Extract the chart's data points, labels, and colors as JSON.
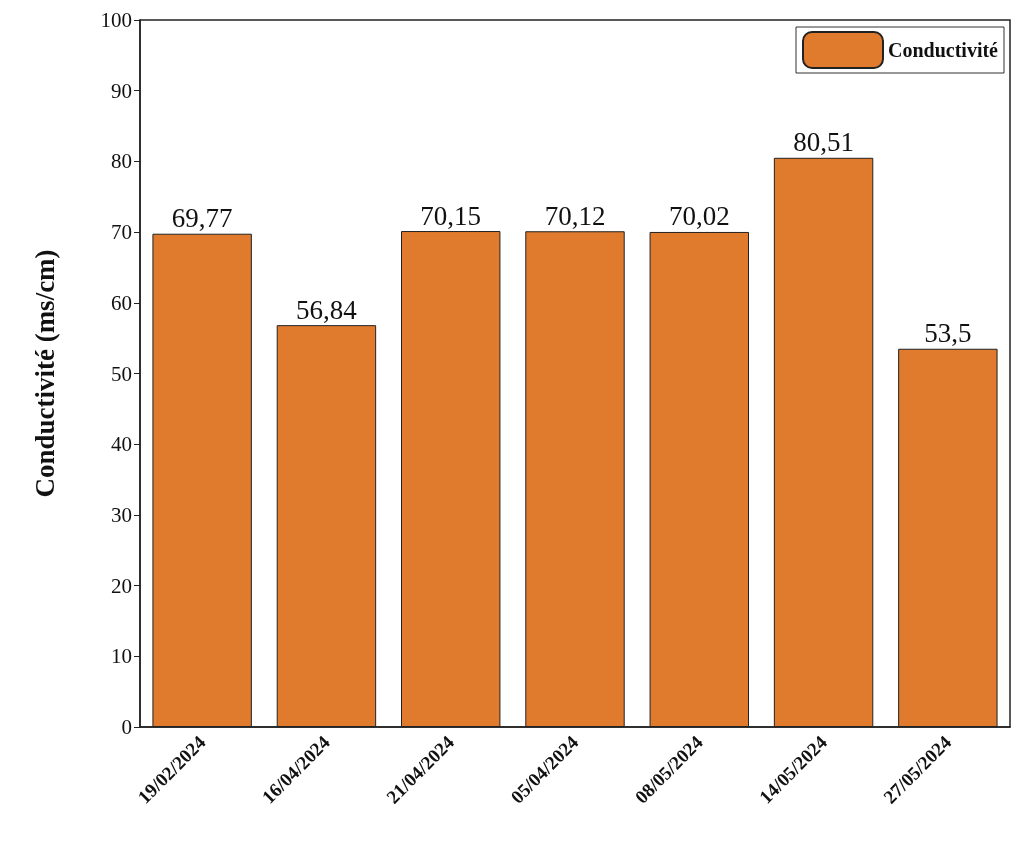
{
  "chart_data": {
    "type": "bar",
    "ylabel": "Conductivité (ms/cm)",
    "categories": [
      "19/02/2024",
      "16/04/2024",
      "21/04/2024",
      "05/04/2024",
      "08/05/2024",
      "14/05/2024",
      "27/05/2024"
    ],
    "series": [
      {
        "name": "Conductivité",
        "color": "#e07a2c",
        "values": [
          69.77,
          56.84,
          70.15,
          70.12,
          70.02,
          80.51,
          53.5
        ],
        "value_labels": [
          "69,77",
          "56,84",
          "70,15",
          "70,12",
          "70,02",
          "80,51",
          "53,5"
        ]
      }
    ],
    "ylim": [
      0,
      100
    ],
    "yticks": [
      0,
      10,
      20,
      30,
      40,
      50,
      60,
      70,
      80,
      90,
      100
    ],
    "grid": false,
    "legend": "top right"
  }
}
